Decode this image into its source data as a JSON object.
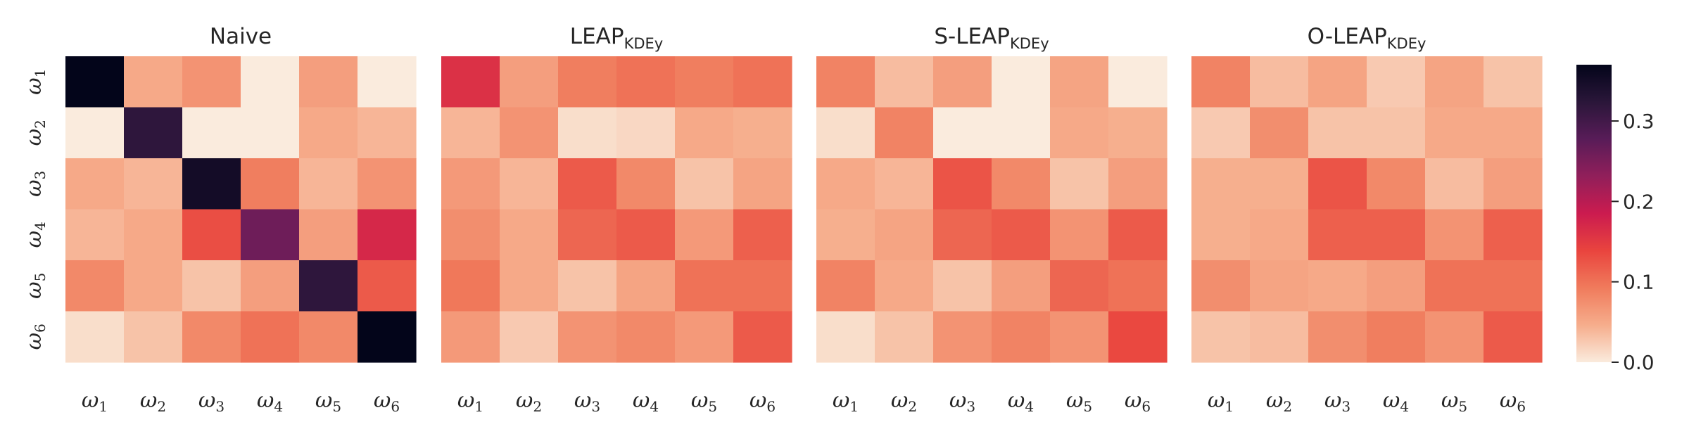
{
  "chart_data": {
    "type": "heatmap",
    "row_labels": [
      [
        "ω",
        "1"
      ],
      [
        "ω",
        "2"
      ],
      [
        "ω",
        "3"
      ],
      [
        "ω",
        "4"
      ],
      [
        "ω",
        "5"
      ],
      [
        "ω",
        "6"
      ]
    ],
    "col_labels": [
      [
        "ω",
        "1"
      ],
      [
        "ω",
        "2"
      ],
      [
        "ω",
        "3"
      ],
      [
        "ω",
        "4"
      ],
      [
        "ω",
        "5"
      ],
      [
        "ω",
        "6"
      ]
    ],
    "colorbar": {
      "vmin": 0.0,
      "vmax": 0.37,
      "ticks": [
        0.0,
        0.1,
        0.2,
        0.3
      ],
      "tick_labels": [
        "0.0",
        "0.1",
        "0.2",
        "0.3"
      ],
      "colormap_stops": [
        "#faebdd",
        "#f6ad8c",
        "#f07b5c",
        "#e9443e",
        "#cb1b4f",
        "#911f5a",
        "#581c58",
        "#2a1639",
        "#03051a"
      ]
    },
    "panels": [
      {
        "title": "Naive",
        "title_sub": "",
        "values": [
          [
            0.37,
            0.05,
            0.07,
            0.0,
            0.06,
            0.0
          ],
          [
            0.0,
            0.32,
            0.0,
            0.0,
            0.05,
            0.04
          ],
          [
            0.05,
            0.04,
            0.35,
            0.09,
            0.04,
            0.07
          ],
          [
            0.04,
            0.05,
            0.13,
            0.26,
            0.06,
            0.17
          ],
          [
            0.08,
            0.05,
            0.03,
            0.06,
            0.32,
            0.12
          ],
          [
            0.01,
            0.03,
            0.08,
            0.1,
            0.08,
            0.37
          ]
        ]
      },
      {
        "title": "LEAP",
        "title_sub": "KDEy",
        "values": [
          [
            0.16,
            0.06,
            0.09,
            0.1,
            0.09,
            0.1
          ],
          [
            0.04,
            0.07,
            0.01,
            0.015,
            0.05,
            0.045
          ],
          [
            0.065,
            0.04,
            0.12,
            0.08,
            0.03,
            0.055
          ],
          [
            0.075,
            0.05,
            0.11,
            0.12,
            0.065,
            0.115
          ],
          [
            0.095,
            0.05,
            0.03,
            0.055,
            0.1,
            0.1
          ],
          [
            0.065,
            0.025,
            0.07,
            0.08,
            0.065,
            0.12
          ]
        ]
      },
      {
        "title": "S-LEAP",
        "title_sub": "KDEy",
        "values": [
          [
            0.085,
            0.035,
            0.06,
            0.0,
            0.055,
            0.0
          ],
          [
            0.01,
            0.085,
            0.0,
            0.0,
            0.05,
            0.045
          ],
          [
            0.05,
            0.04,
            0.125,
            0.08,
            0.03,
            0.06
          ],
          [
            0.045,
            0.055,
            0.11,
            0.12,
            0.07,
            0.12
          ],
          [
            0.085,
            0.05,
            0.03,
            0.06,
            0.11,
            0.1
          ],
          [
            0.01,
            0.03,
            0.07,
            0.085,
            0.07,
            0.135
          ]
        ]
      },
      {
        "title": "O-LEAP",
        "title_sub": "KDEy",
        "values": [
          [
            0.085,
            0.035,
            0.055,
            0.025,
            0.055,
            0.03
          ],
          [
            0.025,
            0.075,
            0.03,
            0.03,
            0.05,
            0.05
          ],
          [
            0.045,
            0.045,
            0.125,
            0.08,
            0.035,
            0.06
          ],
          [
            0.045,
            0.05,
            0.115,
            0.115,
            0.07,
            0.115
          ],
          [
            0.075,
            0.055,
            0.05,
            0.06,
            0.1,
            0.1
          ],
          [
            0.03,
            0.035,
            0.075,
            0.09,
            0.07,
            0.12
          ]
        ]
      }
    ]
  }
}
